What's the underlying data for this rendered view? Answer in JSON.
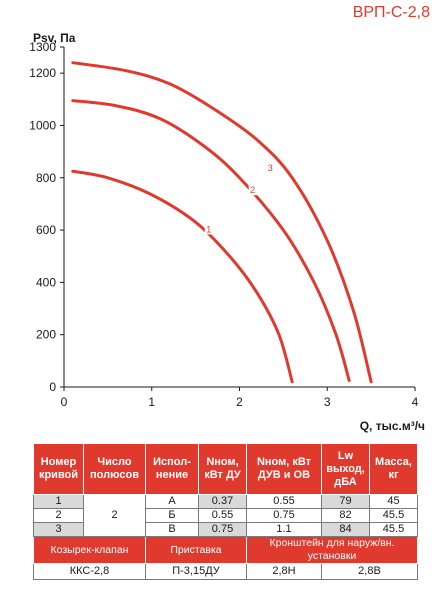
{
  "title": "ВРП-С-2,8",
  "chart_data": {
    "type": "line",
    "xlabel": "Q, тыс.м³/ч",
    "ylabel": "Psv, Па",
    "xlim": [
      0,
      4
    ],
    "ylim": [
      0,
      1300
    ],
    "x_ticks": [
      "0",
      "1",
      "2",
      "3",
      "4"
    ],
    "y_ticks": [
      "0",
      "200",
      "400",
      "600",
      "800",
      "1000",
      "1200",
      "1300"
    ],
    "grid": false,
    "series": [
      {
        "name": "1",
        "points": [
          [
            0.1,
            825
          ],
          [
            0.5,
            800
          ],
          [
            1.0,
            735
          ],
          [
            1.5,
            630
          ],
          [
            1.9,
            495
          ],
          [
            2.2,
            360
          ],
          [
            2.45,
            200
          ],
          [
            2.6,
            20
          ]
        ]
      },
      {
        "name": "2",
        "points": [
          [
            0.1,
            1095
          ],
          [
            0.6,
            1075
          ],
          [
            1.1,
            1025
          ],
          [
            1.6,
            920
          ],
          [
            2.0,
            800
          ],
          [
            2.5,
            600
          ],
          [
            2.85,
            400
          ],
          [
            3.1,
            200
          ],
          [
            3.25,
            25
          ]
        ]
      },
      {
        "name": "3",
        "points": [
          [
            0.1,
            1240
          ],
          [
            0.7,
            1210
          ],
          [
            1.2,
            1160
          ],
          [
            1.7,
            1065
          ],
          [
            2.2,
            945
          ],
          [
            2.6,
            800
          ],
          [
            3.0,
            560
          ],
          [
            3.3,
            290
          ],
          [
            3.5,
            20
          ]
        ]
      }
    ]
  },
  "table": {
    "headers": [
      "Номер кривой",
      "Число полюсов",
      "Испол-нение",
      "Nном, кВт ДУ",
      "Nном, кВт ДУВ и ОВ",
      "Lw выход, дБА",
      "Масса, кг"
    ],
    "poles": "2",
    "rows": [
      {
        "curve": "1",
        "version": "А",
        "n_du": "0.37",
        "n_duv": "0.55",
        "lw": "79",
        "mass": "45"
      },
      {
        "curve": "2",
        "version": "Б",
        "n_du": "0.55",
        "n_duv": "0.75",
        "lw": "82",
        "mass": "45.5"
      },
      {
        "curve": "3",
        "version": "В",
        "n_du": "0.75",
        "n_duv": "1.1",
        "lw": "84",
        "mass": "45.5"
      }
    ],
    "accessories": {
      "headers": [
        "Козырек-клапан",
        "Приставка",
        "Кронштейн для наруж/вн. установки"
      ],
      "values": [
        "ККС-2,8",
        "П-3,15ДУ",
        "2,8Н",
        "2,8В"
      ]
    }
  }
}
